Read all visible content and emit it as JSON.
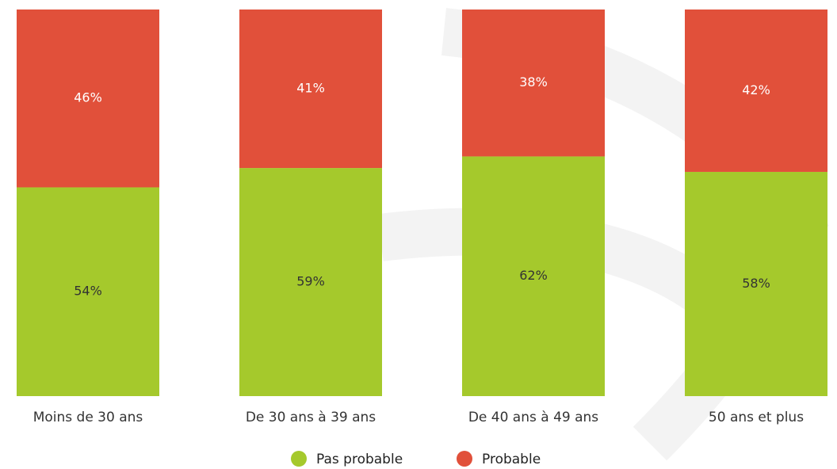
{
  "chart_data": {
    "type": "stacked-bar",
    "categories": [
      "Moins de 30 ans",
      "De 30 ans à 39 ans",
      "De 40 ans à 49 ans",
      "50 ans et plus"
    ],
    "series": [
      {
        "name": "Pas probable",
        "color": "#a5c92c",
        "values": [
          54,
          59,
          62,
          58
        ],
        "value_labels": [
          "54%",
          "59%",
          "62%",
          "58%"
        ]
      },
      {
        "name": "Probable",
        "color": "#e1503a",
        "values": [
          46,
          41,
          38,
          42
        ],
        "value_labels": [
          "46%",
          "41%",
          "38%",
          "42%"
        ]
      }
    ],
    "ylim": [
      0,
      100
    ]
  }
}
